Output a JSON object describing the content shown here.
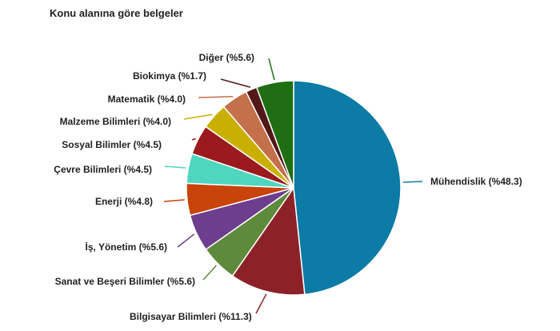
{
  "chart_data": {
    "type": "pie",
    "title": "Konu alanına göre belgeler",
    "slices": [
      {
        "name": "Mühendislik",
        "value": 48.3,
        "label": "Mühendislik (%48.3)",
        "color": "#0c7ba5"
      },
      {
        "name": "Bilgisayar Bilimleri",
        "value": 11.3,
        "label": "Bilgisayar Bilimleri (%11.3)",
        "color": "#8c2228"
      },
      {
        "name": "Sanat ve Beşeri Bilimler",
        "value": 5.6,
        "label": "Sanat ve Beşeri Bilimler (%5.6)",
        "color": "#5e8a3c"
      },
      {
        "name": "İş, Yönetim",
        "value": 5.6,
        "label": "İş, Yönetim (%5.6)",
        "color": "#6e3e8e"
      },
      {
        "name": "Enerji",
        "value": 4.8,
        "label": "Enerji (%4.8)",
        "color": "#c8440a"
      },
      {
        "name": "Çevre Bilimleri",
        "value": 4.5,
        "label": "Çevre Bilimleri (%4.5)",
        "color": "#4fd6bf"
      },
      {
        "name": "Sosyal Bilimler",
        "value": 4.5,
        "label": "Sosyal Bilimler (%4.5)",
        "color": "#9a1a1e"
      },
      {
        "name": "Malzeme Bilimleri",
        "value": 4.0,
        "label": "Malzeme Bilimleri (%4.0)",
        "color": "#c9b000"
      },
      {
        "name": "Matematik",
        "value": 4.0,
        "label": "Matematik (%4.0)",
        "color": "#c4704a"
      },
      {
        "name": "Biokimya",
        "value": 1.7,
        "label": "Biokimya (%1.7)",
        "color": "#521818"
      },
      {
        "name": "Diğer",
        "value": 5.6,
        "label": "Diğer (%5.6)",
        "color": "#1f6e14"
      }
    ]
  }
}
